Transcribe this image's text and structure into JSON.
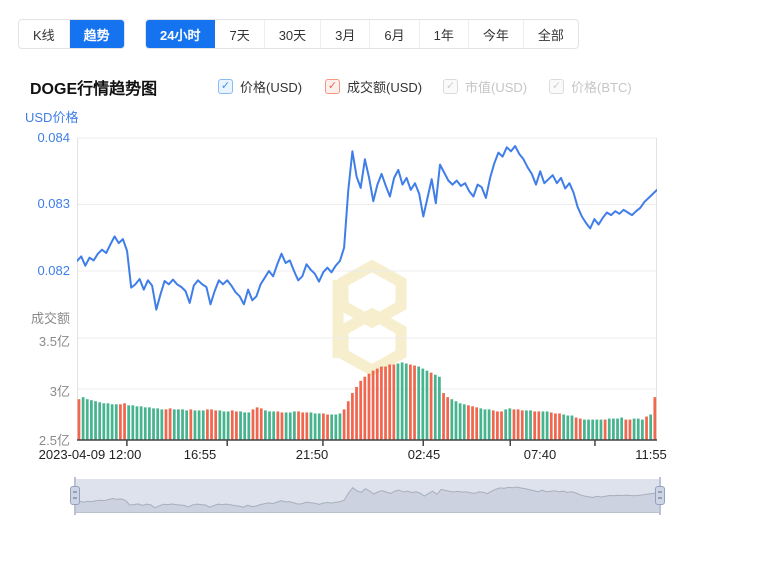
{
  "tabs": {
    "chart_type": [
      {
        "label": "K线",
        "active": false
      },
      {
        "label": "趋势",
        "active": true
      }
    ],
    "range": [
      {
        "label": "24小时",
        "active": true
      },
      {
        "label": "7天",
        "active": false
      },
      {
        "label": "30天",
        "active": false
      },
      {
        "label": "3月",
        "active": false
      },
      {
        "label": "6月",
        "active": false
      },
      {
        "label": "1年",
        "active": false
      },
      {
        "label": "今年",
        "active": false
      },
      {
        "label": "全部",
        "active": false
      }
    ]
  },
  "header": {
    "title": "DOGE行情趋势图",
    "legend": [
      {
        "label": "价格(USD)",
        "state": "checked-blue"
      },
      {
        "label": "成交额(USD)",
        "state": "checked-red"
      },
      {
        "label": "市值(USD)",
        "state": "disabled"
      },
      {
        "label": "价格(BTC)",
        "state": "disabled"
      }
    ]
  },
  "chart_data": {
    "type": "line+bar",
    "title": "DOGE行情趋势图",
    "price_axis": {
      "label": "USD价格",
      "ticks": [
        "0.084",
        "0.083",
        "0.082"
      ],
      "range": [
        0.0813,
        0.084
      ]
    },
    "volume_axis": {
      "label": "成交额",
      "ticks": [
        "3.5亿",
        "3亿",
        "2.5亿"
      ],
      "range": [
        2.5,
        3.5
      ]
    },
    "x_ticks": [
      "2023-04-09 12:00",
      "16:55",
      "21:50",
      "02:45",
      "07:40",
      "11:55"
    ],
    "colors": {
      "price_line": "#3f7ee8",
      "vol_up": "#46b48e",
      "vol_down": "#f0664f",
      "grid": "#ececec",
      "axis": "#444444",
      "watermark": "#f6eecd"
    },
    "price_series": [
      0.08215,
      0.08222,
      0.08208,
      0.0822,
      0.08216,
      0.08226,
      0.08232,
      0.08227,
      0.0824,
      0.08252,
      0.08242,
      0.08248,
      0.0823,
      0.08175,
      0.0818,
      0.08188,
      0.08172,
      0.08186,
      0.08178,
      0.08142,
      0.08165,
      0.08185,
      0.0818,
      0.08187,
      0.0818,
      0.08176,
      0.0817,
      0.08152,
      0.08178,
      0.08186,
      0.0818,
      0.08176,
      0.0815,
      0.0817,
      0.08186,
      0.0818,
      0.08186,
      0.08178,
      0.08168,
      0.08162,
      0.0815,
      0.08172,
      0.08156,
      0.08162,
      0.0818,
      0.0819,
      0.082,
      0.08192,
      0.0821,
      0.08226,
      0.08212,
      0.08216,
      0.082,
      0.08186,
      0.08192,
      0.0821,
      0.08202,
      0.08196,
      0.08184,
      0.08198,
      0.08205,
      0.08198,
      0.08208,
      0.08215,
      0.08235,
      0.0832,
      0.0838,
      0.08342,
      0.08325,
      0.08368,
      0.0834,
      0.08305,
      0.0833,
      0.08346,
      0.08328,
      0.08312,
      0.0834,
      0.08352,
      0.0833,
      0.0834,
      0.08322,
      0.08332,
      0.08316,
      0.08282,
      0.0831,
      0.08338,
      0.08302,
      0.0836,
      0.08348,
      0.08336,
      0.0833,
      0.08336,
      0.08328,
      0.08332,
      0.0832,
      0.08312,
      0.0833,
      0.08326,
      0.0831,
      0.0834,
      0.08362,
      0.08378,
      0.08372,
      0.08386,
      0.0838,
      0.08388,
      0.08376,
      0.08368,
      0.08356,
      0.08346,
      0.0833,
      0.0835,
      0.08332,
      0.08338,
      0.08344,
      0.08332,
      0.0834,
      0.08324,
      0.08332,
      0.08318,
      0.08296,
      0.08282,
      0.08272,
      0.08264,
      0.08278,
      0.0827,
      0.0828,
      0.08288,
      0.08284,
      0.0829,
      0.08286,
      0.08292,
      0.08288,
      0.08284,
      0.0829,
      0.08295,
      0.08304,
      0.0831,
      0.08316,
      0.08322
    ],
    "volume_series": [
      [
        2.9,
        "r"
      ],
      [
        2.92,
        "g"
      ],
      [
        2.9,
        "g"
      ],
      [
        2.89,
        "g"
      ],
      [
        2.88,
        "g"
      ],
      [
        2.87,
        "g"
      ],
      [
        2.86,
        "g"
      ],
      [
        2.86,
        "g"
      ],
      [
        2.85,
        "g"
      ],
      [
        2.85,
        "g"
      ],
      [
        2.85,
        "r"
      ],
      [
        2.86,
        "r"
      ],
      [
        2.84,
        "g"
      ],
      [
        2.84,
        "g"
      ],
      [
        2.83,
        "g"
      ],
      [
        2.83,
        "g"
      ],
      [
        2.82,
        "g"
      ],
      [
        2.82,
        "g"
      ],
      [
        2.81,
        "g"
      ],
      [
        2.81,
        "g"
      ],
      [
        2.8,
        "g"
      ],
      [
        2.8,
        "r"
      ],
      [
        2.81,
        "r"
      ],
      [
        2.8,
        "g"
      ],
      [
        2.8,
        "g"
      ],
      [
        2.8,
        "g"
      ],
      [
        2.79,
        "g"
      ],
      [
        2.8,
        "r"
      ],
      [
        2.79,
        "g"
      ],
      [
        2.79,
        "g"
      ],
      [
        2.79,
        "g"
      ],
      [
        2.8,
        "r"
      ],
      [
        2.8,
        "r"
      ],
      [
        2.79,
        "r"
      ],
      [
        2.79,
        "g"
      ],
      [
        2.78,
        "g"
      ],
      [
        2.78,
        "g"
      ],
      [
        2.79,
        "r"
      ],
      [
        2.78,
        "r"
      ],
      [
        2.78,
        "g"
      ],
      [
        2.77,
        "g"
      ],
      [
        2.77,
        "g"
      ],
      [
        2.8,
        "r"
      ],
      [
        2.82,
        "r"
      ],
      [
        2.81,
        "r"
      ],
      [
        2.79,
        "g"
      ],
      [
        2.78,
        "g"
      ],
      [
        2.78,
        "g"
      ],
      [
        2.78,
        "r"
      ],
      [
        2.77,
        "r"
      ],
      [
        2.77,
        "g"
      ],
      [
        2.77,
        "g"
      ],
      [
        2.78,
        "g"
      ],
      [
        2.78,
        "r"
      ],
      [
        2.77,
        "r"
      ],
      [
        2.77,
        "r"
      ],
      [
        2.77,
        "g"
      ],
      [
        2.76,
        "g"
      ],
      [
        2.76,
        "g"
      ],
      [
        2.76,
        "r"
      ],
      [
        2.75,
        "r"
      ],
      [
        2.75,
        "g"
      ],
      [
        2.75,
        "g"
      ],
      [
        2.76,
        "g"
      ],
      [
        2.8,
        "r"
      ],
      [
        2.88,
        "r"
      ],
      [
        2.96,
        "r"
      ],
      [
        3.02,
        "r"
      ],
      [
        3.08,
        "r"
      ],
      [
        3.12,
        "r"
      ],
      [
        3.15,
        "r"
      ],
      [
        3.18,
        "r"
      ],
      [
        3.2,
        "r"
      ],
      [
        3.22,
        "r"
      ],
      [
        3.22,
        "r"
      ],
      [
        3.24,
        "r"
      ],
      [
        3.24,
        "r"
      ],
      [
        3.25,
        "g"
      ],
      [
        3.26,
        "g"
      ],
      [
        3.25,
        "g"
      ],
      [
        3.24,
        "r"
      ],
      [
        3.23,
        "r"
      ],
      [
        3.22,
        "g"
      ],
      [
        3.2,
        "g"
      ],
      [
        3.18,
        "g"
      ],
      [
        3.16,
        "r"
      ],
      [
        3.14,
        "g"
      ],
      [
        3.12,
        "g"
      ],
      [
        2.96,
        "r"
      ],
      [
        2.92,
        "r"
      ],
      [
        2.9,
        "g"
      ],
      [
        2.88,
        "g"
      ],
      [
        2.86,
        "g"
      ],
      [
        2.85,
        "g"
      ],
      [
        2.84,
        "r"
      ],
      [
        2.83,
        "r"
      ],
      [
        2.82,
        "r"
      ],
      [
        2.81,
        "g"
      ],
      [
        2.8,
        "g"
      ],
      [
        2.8,
        "g"
      ],
      [
        2.79,
        "r"
      ],
      [
        2.78,
        "r"
      ],
      [
        2.78,
        "r"
      ],
      [
        2.8,
        "g"
      ],
      [
        2.81,
        "g"
      ],
      [
        2.8,
        "r"
      ],
      [
        2.8,
        "r"
      ],
      [
        2.79,
        "r"
      ],
      [
        2.79,
        "g"
      ],
      [
        2.79,
        "g"
      ],
      [
        2.78,
        "r"
      ],
      [
        2.78,
        "r"
      ],
      [
        2.78,
        "g"
      ],
      [
        2.78,
        "g"
      ],
      [
        2.77,
        "r"
      ],
      [
        2.76,
        "r"
      ],
      [
        2.76,
        "r"
      ],
      [
        2.75,
        "g"
      ],
      [
        2.74,
        "g"
      ],
      [
        2.74,
        "g"
      ],
      [
        2.72,
        "r"
      ],
      [
        2.71,
        "r"
      ],
      [
        2.7,
        "g"
      ],
      [
        2.7,
        "g"
      ],
      [
        2.7,
        "g"
      ],
      [
        2.7,
        "g"
      ],
      [
        2.7,
        "g"
      ],
      [
        2.7,
        "r"
      ],
      [
        2.71,
        "g"
      ],
      [
        2.71,
        "g"
      ],
      [
        2.71,
        "g"
      ],
      [
        2.72,
        "g"
      ],
      [
        2.7,
        "r"
      ],
      [
        2.7,
        "r"
      ],
      [
        2.71,
        "g"
      ],
      [
        2.71,
        "g"
      ],
      [
        2.7,
        "g"
      ],
      [
        2.73,
        "r"
      ],
      [
        2.75,
        "g"
      ],
      [
        2.92,
        "r"
      ]
    ]
  },
  "navigator": {
    "selected_range": "100%"
  }
}
